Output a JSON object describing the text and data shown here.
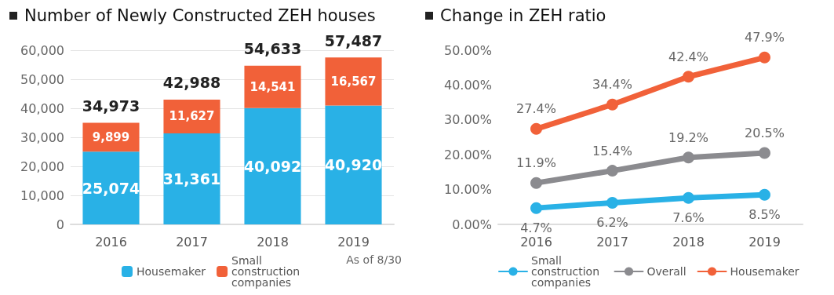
{
  "chart_data": [
    {
      "type": "bar",
      "title": "Number of Newly Constructed ZEH houses",
      "categories": [
        "2016",
        "2017",
        "2018",
        "2019"
      ],
      "stacked": true,
      "series": [
        {
          "name": "Housemaker",
          "color": "#29b1e6",
          "values": [
            25074,
            31361,
            40092,
            40920
          ],
          "value_labels": [
            "25,074",
            "31,361",
            "40,092",
            "40,920"
          ]
        },
        {
          "name": "Small construction companies",
          "color": "#f16139",
          "values": [
            9899,
            11627,
            14541,
            16567
          ],
          "value_labels": [
            "9,899",
            "11,627",
            "14,541",
            "16,567"
          ]
        }
      ],
      "totals": [
        "34,973",
        "42,988",
        "54,633",
        "57,487"
      ],
      "ylim": [
        0,
        60000
      ],
      "yticks": [
        {
          "value": 0,
          "label": "0"
        },
        {
          "value": 10000,
          "label": "10,000"
        },
        {
          "value": 20000,
          "label": "20,000"
        },
        {
          "value": 30000,
          "label": "30,000"
        },
        {
          "value": 40000,
          "label": "40,000"
        },
        {
          "value": 50000,
          "label": "50,000"
        },
        {
          "value": 60000,
          "label": "60,000"
        }
      ],
      "grid": "y",
      "legend": "bottom",
      "annotations": [
        "As of 8/30"
      ]
    },
    {
      "type": "line",
      "title": "Change in ZEH ratio",
      "categories": [
        "2016",
        "2017",
        "2018",
        "2019"
      ],
      "series": [
        {
          "name": "Small construction companies",
          "color": "#29b1e6",
          "values": [
            4.7,
            6.2,
            7.6,
            8.5
          ],
          "value_labels": [
            "4.7%",
            "6.2%",
            "7.6%",
            "8.5%"
          ]
        },
        {
          "name": "Overall",
          "color": "#8b8b8f",
          "values": [
            11.9,
            15.4,
            19.2,
            20.5
          ],
          "value_labels": [
            "11.9%",
            "15.4%",
            "19.2%",
            "20.5%"
          ]
        },
        {
          "name": "Housemaker",
          "color": "#f16139",
          "values": [
            27.4,
            34.4,
            42.4,
            47.9
          ],
          "value_labels": [
            "27.4%",
            "34.4%",
            "42.4%",
            "47.9%"
          ]
        }
      ],
      "ylim": [
        0,
        50
      ],
      "yticks": [
        {
          "value": 0,
          "label": "0.00%"
        },
        {
          "value": 10,
          "label": "10.00%"
        },
        {
          "value": 20,
          "label": "20.00%"
        },
        {
          "value": 30,
          "label": "30.00%"
        },
        {
          "value": 40,
          "label": "40.00%"
        },
        {
          "value": 50,
          "label": "50.00%"
        }
      ],
      "grid": false,
      "legend": "bottom",
      "marker": "circle",
      "line_style": "solid"
    }
  ]
}
